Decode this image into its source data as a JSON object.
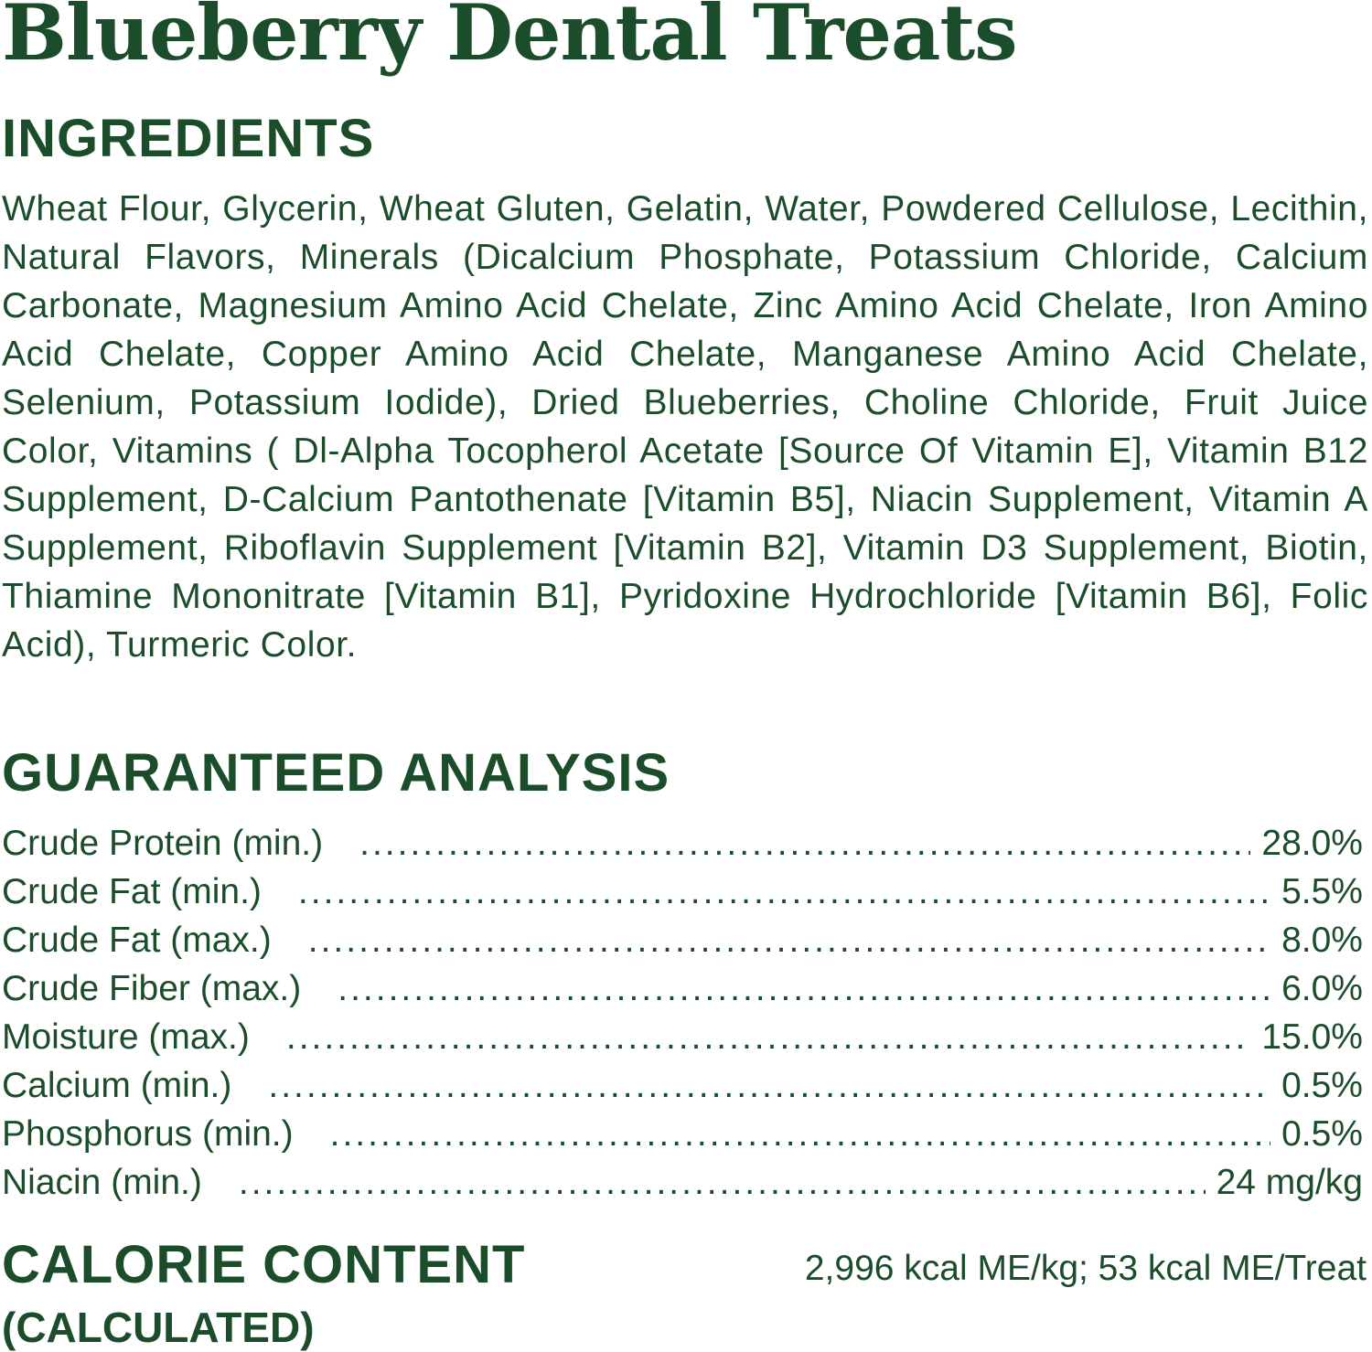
{
  "title": "Blueberry Dental Treats",
  "colors": {
    "text": "#1b4d2b",
    "background": "#ffffff"
  },
  "ingredients": {
    "heading": "INGREDIENTS",
    "text": "Wheat Flour, Glycerin, Wheat Gluten, Gelatin, Water, Powdered Cellulose, Lecithin, Natural Flavors, Minerals (Dicalcium Phosphate, Potassium Chloride, Calcium Carbonate, Magnesium Amino Acid Chelate, Zinc Amino Acid Chelate, Iron Amino Acid Chelate, Copper Amino Acid Chelate, Manganese Amino Acid Chelate, Selenium, Potassium Iodide), Dried Blueberries, Choline Chloride, Fruit Juice Color, Vitamins ( Dl-Alpha Tocopherol Acetate [Source Of Vitamin E], Vitamin B12 Supplement, D-Calcium Pantothenate [Vitamin B5], Niacin Supplement, Vitamin A Supplement, Riboflavin Supplement [Vitamin B2], Vitamin D3 Supplement, Biotin, Thiamine Mononitrate [Vitamin B1], Pyridoxine Hydrochloride [Vitamin B6], Folic Acid), Turmeric Color."
  },
  "analysis": {
    "heading": "GUARANTEED ANALYSIS",
    "rows": [
      {
        "label": "Crude Protein (min.)",
        "value": "28.0%"
      },
      {
        "label": "Crude Fat (min.)",
        "value": "5.5%"
      },
      {
        "label": "Crude Fat (max.)",
        "value": "8.0%"
      },
      {
        "label": "Crude Fiber (max.)",
        "value": "6.0%"
      },
      {
        "label": "Moisture (max.)",
        "value": "15.0%"
      },
      {
        "label": "Calcium (min.)",
        "value": "0.5%"
      },
      {
        "label": "Phosphorus (min.)",
        "value": "0.5%"
      },
      {
        "label": "Niacin (min.)",
        "value": "24 mg/kg"
      }
    ]
  },
  "calorie": {
    "heading": "CALORIE CONTENT",
    "subheading": "(CALCULATED)",
    "value": "2,996 kcal ME/kg; 53 kcal ME/Treat"
  }
}
